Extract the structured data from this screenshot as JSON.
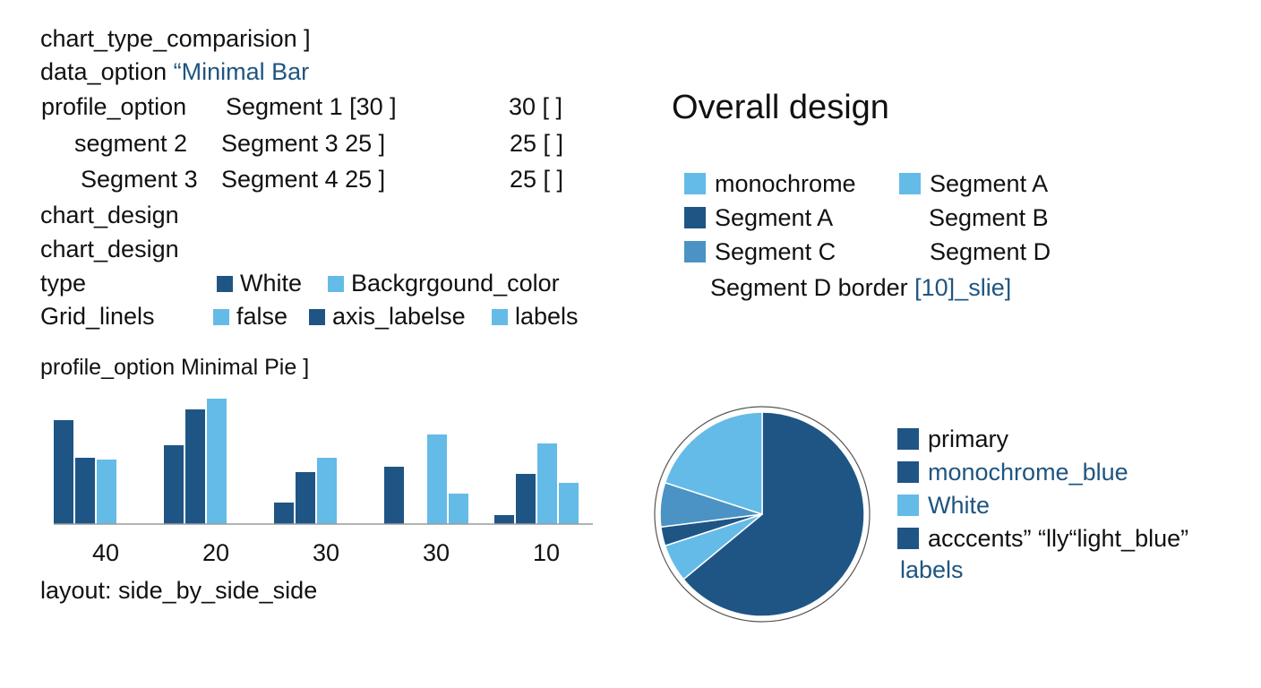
{
  "colors": {
    "dark": "#1f5585",
    "mid": "#4a93c4",
    "light": "#64bbe7",
    "axis": "#9a9a9a",
    "text_blue": "#1f5580"
  },
  "left_spec": {
    "line1": "chart_type_comparision ]",
    "line2_key": "data_option",
    "line2_val": "“Minimal Bar",
    "row1": {
      "a": "profile_option",
      "b": "Segment 1 [30 ]",
      "c": "30 [ ]"
    },
    "row2": {
      "a": "segment 2",
      "b": "Segment 3 25 ]",
      "c": "25 [ ]"
    },
    "row3": {
      "a": "Segment 3",
      "b": "Segment 4 25 ]",
      "c": "25 [ ]"
    },
    "chart_design_1": "chart_design",
    "chart_design_2": "chart_design",
    "type_key": "type",
    "type_opt1": "White",
    "type_opt2": "Backgrgound_color",
    "grid_key": "Grid_linels",
    "grid_opt1": "false",
    "grid_opt2": "axis_labelse",
    "grid_opt3": "labels",
    "profile_pie": "profile_option Minimal Pie ]",
    "layout": "layout:  side_by_side_side"
  },
  "overall": {
    "title": "Overall design",
    "legend": [
      {
        "label": "monochrome",
        "color": "light"
      },
      {
        "label": "Segment A",
        "color": "light"
      },
      {
        "label": "Segment A",
        "color": "dark"
      },
      {
        "label": "Segment B",
        "color": ""
      },
      {
        "label": "Segment C",
        "color": "mid"
      },
      {
        "label": "Segment D",
        "color": ""
      }
    ],
    "border_text": "Segment D border",
    "border_val": "[10]_slie]"
  },
  "pie_legend": [
    {
      "label": "primary",
      "color": "dark",
      "blue": false
    },
    {
      "label": "monochrome_blue",
      "color": "dark",
      "blue": true
    },
    {
      "label": "White",
      "color": "light",
      "blue": true
    },
    {
      "label": "acccents” “lly“light_blue”",
      "color": "dark",
      "blue": false
    }
  ],
  "pie_legend_extra": "labels",
  "chart_data": [
    {
      "type": "bar",
      "categories": [
        "40",
        "20",
        "30",
        "30",
        "10"
      ],
      "series": [
        {
          "values": [
            58,
            44,
            12,
            32,
            5
          ],
          "color": "dark"
        },
        {
          "values": [
            37,
            64,
            29,
            0,
            28
          ],
          "color": "dark"
        },
        {
          "values": [
            36,
            70,
            37,
            50,
            45
          ],
          "color": "light"
        },
        {
          "values": [
            0,
            0,
            0,
            17,
            23
          ],
          "color": "light"
        }
      ],
      "ylim": [
        0,
        75
      ],
      "title": "",
      "xlabel": "",
      "ylabel": "",
      "grid": false
    },
    {
      "type": "pie",
      "values": [
        64,
        6,
        3,
        7,
        20
      ],
      "colors": [
        "dark",
        "light",
        "dark",
        "mid",
        "light"
      ]
    }
  ]
}
